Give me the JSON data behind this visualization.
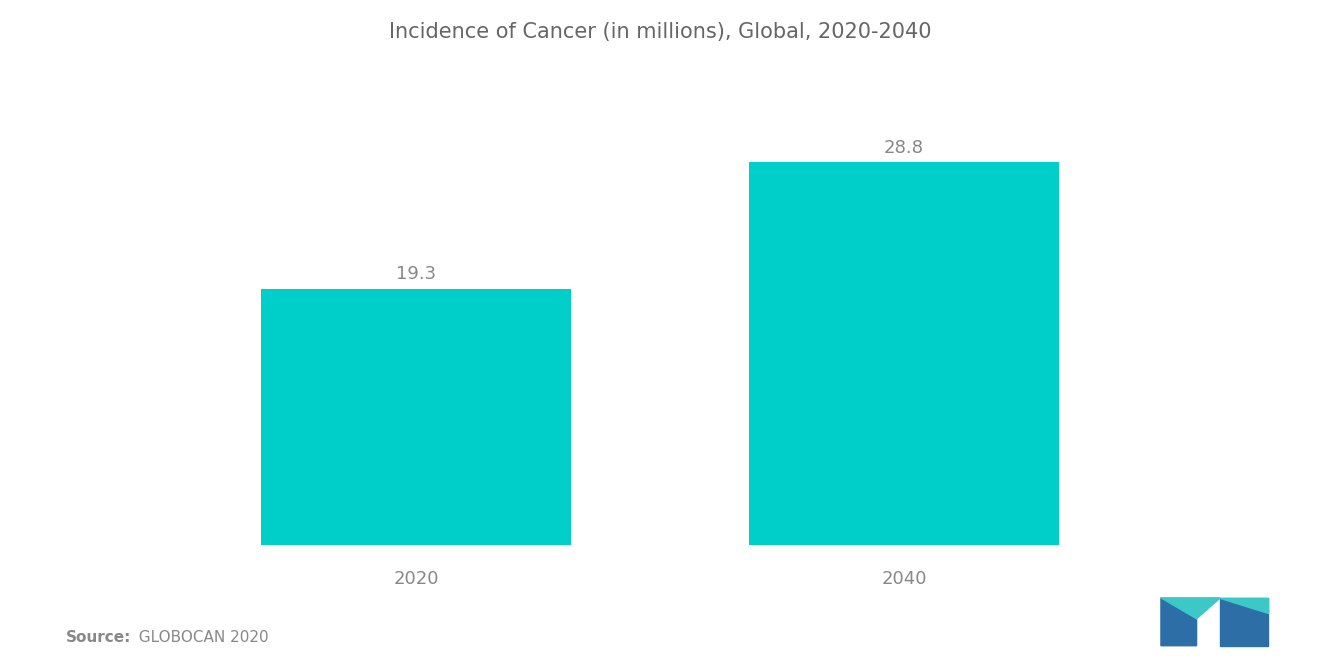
{
  "title": "Incidence of Cancer (in millions), Global, 2020-2040",
  "categories": [
    "2020",
    "2040"
  ],
  "values": [
    19.3,
    28.8
  ],
  "bar_color": "#00CEC9",
  "bar_width": 0.28,
  "background_color": "#ffffff",
  "title_fontsize": 15,
  "label_fontsize": 13,
  "value_fontsize": 13,
  "source_bold": "Source:",
  "source_rest": "  GLOBOCAN 2020",
  "ylim": [
    0,
    35
  ],
  "xlim": [
    0.0,
    1.0
  ],
  "x_positions": [
    0.28,
    0.72
  ],
  "text_color": "#888888",
  "title_color": "#666666",
  "blue_color": "#2E6EA6",
  "teal_color": "#3DC8C8"
}
